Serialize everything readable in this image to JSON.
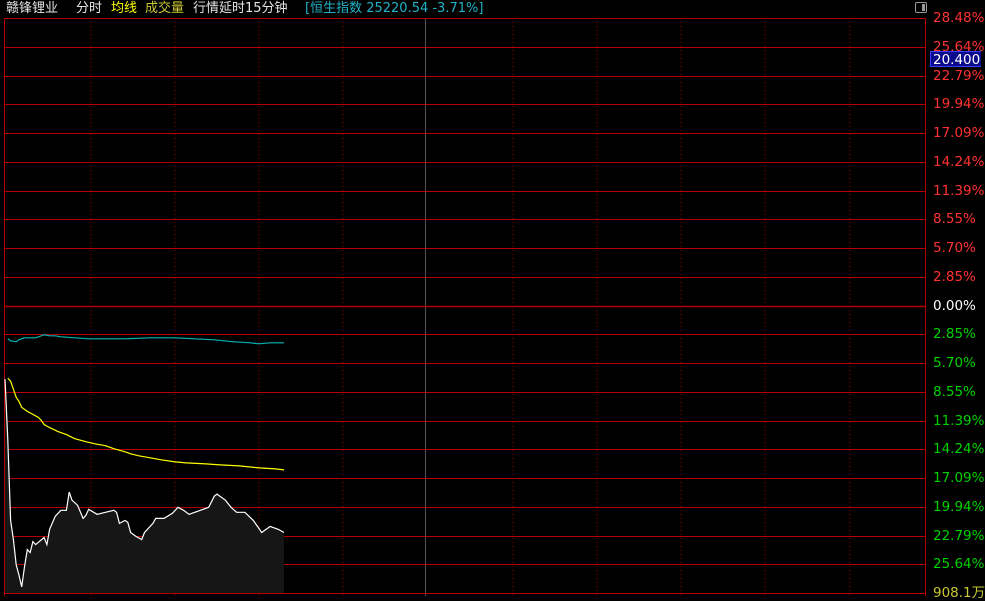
{
  "header": {
    "stock_name": "赣锋锂业",
    "tab_timeshare": "分时",
    "avg_line_label": "均线",
    "volume_label": "成交量",
    "delay_notice": "行情延时15分钟",
    "index_info": "[恒生指数 25220.54 -3.71%]",
    "toggle_icon": "panel-toggle-icon"
  },
  "price_tag": "20.400",
  "colors": {
    "grid": "#b40000",
    "up": "#ff3232",
    "down": "#00d200",
    "flat": "#ffffff",
    "price_line": "#ffffff",
    "avg_line": "#ffff00",
    "index_line": "#00b4b4",
    "volume_text": "#c8c832"
  },
  "chart_data": {
    "type": "line",
    "ylabel_ticks": [
      "28.48%",
      "25.64%",
      "22.79%",
      "19.94%",
      "17.09%",
      "14.24%",
      "11.39%",
      "8.55%",
      "5.70%",
      "2.85%",
      "0.00%",
      "2.85%",
      "5.70%",
      "8.55%",
      "11.39%",
      "14.24%",
      "17.09%",
      "19.94%",
      "22.79%",
      "25.64%",
      "908.1万"
    ],
    "ylim_pct": [
      -28.48,
      28.48
    ],
    "x_range_minutes": [
      0,
      330
    ],
    "series": [
      {
        "key": "price",
        "points": [
          [
            0,
            -7.3
          ],
          [
            1,
            -13.3
          ],
          [
            2,
            -21.3
          ],
          [
            3,
            -23.2
          ],
          [
            4,
            -25.7
          ],
          [
            5,
            -26.7
          ],
          [
            6,
            -27.9
          ],
          [
            7,
            -25.9
          ],
          [
            8,
            -24.2
          ],
          [
            9,
            -24.5
          ],
          [
            10,
            -23.4
          ],
          [
            11,
            -23.7
          ],
          [
            14,
            -23.0
          ],
          [
            15,
            -23.7
          ],
          [
            16,
            -22.2
          ],
          [
            18,
            -20.9
          ],
          [
            20,
            -20.3
          ],
          [
            22,
            -20.3
          ],
          [
            23,
            -18.5
          ],
          [
            24,
            -19.3
          ],
          [
            26,
            -19.8
          ],
          [
            28,
            -21.1
          ],
          [
            29,
            -20.8
          ],
          [
            30,
            -20.2
          ],
          [
            33,
            -20.7
          ],
          [
            36,
            -20.5
          ],
          [
            39,
            -20.3
          ],
          [
            40,
            -20.5
          ],
          [
            41,
            -21.6
          ],
          [
            43,
            -21.3
          ],
          [
            44,
            -21.5
          ],
          [
            45,
            -22.5
          ],
          [
            47,
            -22.9
          ],
          [
            49,
            -23.2
          ],
          [
            50,
            -22.5
          ],
          [
            53,
            -21.6
          ],
          [
            54,
            -21.1
          ],
          [
            57,
            -21.1
          ],
          [
            60,
            -20.6
          ],
          [
            62,
            -20.0
          ],
          [
            64,
            -20.3
          ],
          [
            66,
            -20.7
          ],
          [
            70,
            -20.3
          ],
          [
            73,
            -20.0
          ],
          [
            75,
            -18.9
          ],
          [
            76,
            -18.7
          ],
          [
            79,
            -19.3
          ],
          [
            81,
            -20.0
          ],
          [
            83,
            -20.5
          ],
          [
            86,
            -20.5
          ],
          [
            89,
            -21.3
          ],
          [
            91,
            -22.1
          ],
          [
            92,
            -22.5
          ],
          [
            95,
            -21.9
          ],
          [
            98,
            -22.2
          ],
          [
            100,
            -22.5
          ]
        ]
      },
      {
        "key": "average",
        "points": [
          [
            1,
            -7.2
          ],
          [
            2,
            -7.5
          ],
          [
            3,
            -8.3
          ],
          [
            4,
            -9.1
          ],
          [
            5,
            -9.5
          ],
          [
            6,
            -10.1
          ],
          [
            8,
            -10.5
          ],
          [
            10,
            -10.8
          ],
          [
            12,
            -11.1
          ],
          [
            13,
            -11.4
          ],
          [
            14,
            -11.8
          ],
          [
            16,
            -12.1
          ],
          [
            19,
            -12.5
          ],
          [
            22,
            -12.8
          ],
          [
            25,
            -13.2
          ],
          [
            29,
            -13.5
          ],
          [
            32,
            -13.7
          ],
          [
            36,
            -13.9
          ],
          [
            39,
            -14.2
          ],
          [
            43,
            -14.5
          ],
          [
            45,
            -14.7
          ],
          [
            48,
            -14.9
          ],
          [
            52,
            -15.1
          ],
          [
            56,
            -15.3
          ],
          [
            61,
            -15.5
          ],
          [
            65,
            -15.6
          ],
          [
            72,
            -15.7
          ],
          [
            77,
            -15.8
          ],
          [
            84,
            -15.9
          ],
          [
            91,
            -16.1
          ],
          [
            97,
            -16.2
          ],
          [
            100,
            -16.3
          ]
        ]
      },
      {
        "key": "index",
        "points": [
          [
            1,
            -3.3
          ],
          [
            2,
            -3.5
          ],
          [
            4,
            -3.6
          ],
          [
            5,
            -3.4
          ],
          [
            7,
            -3.2
          ],
          [
            11,
            -3.2
          ],
          [
            13,
            -3.0
          ],
          [
            14,
            -2.9
          ],
          [
            16,
            -3.0
          ],
          [
            18,
            -3.0
          ],
          [
            20,
            -3.1
          ],
          [
            25,
            -3.2
          ],
          [
            30,
            -3.3
          ],
          [
            36,
            -3.3
          ],
          [
            43,
            -3.3
          ],
          [
            52,
            -3.2
          ],
          [
            61,
            -3.2
          ],
          [
            68,
            -3.3
          ],
          [
            75,
            -3.4
          ],
          [
            82,
            -3.6
          ],
          [
            88,
            -3.7
          ],
          [
            91,
            -3.8
          ],
          [
            95,
            -3.7
          ],
          [
            100,
            -3.7
          ]
        ]
      }
    ]
  }
}
